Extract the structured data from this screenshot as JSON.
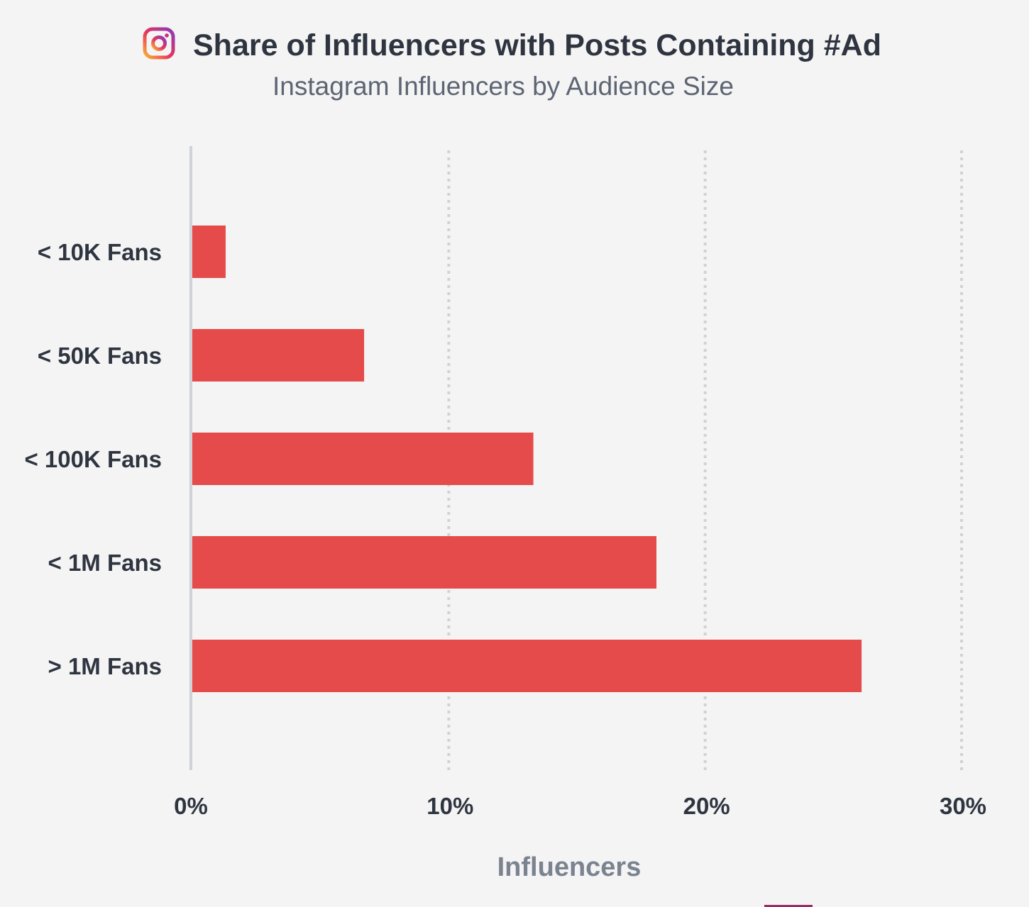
{
  "colors": {
    "bar": "#e54b4b",
    "text": "#2f3540",
    "subtitle": "#5d6573",
    "axis_label": "#7b8290",
    "grid": "#d2d2d2",
    "axis": "#cfd2d6"
  },
  "logo": {
    "icon": "instagram-icon"
  },
  "chart_data": {
    "type": "bar",
    "orientation": "horizontal",
    "title": "Share of Influencers with Posts Containing #Ad",
    "subtitle": "Instagram Influencers by Audience Size",
    "xlabel": "Influencers",
    "ylabel": "",
    "categories": [
      "< 10K Fans",
      "< 50K Fans",
      "< 100K Fans",
      "< 1M Fans",
      "> 1M Fans"
    ],
    "values": [
      1.3,
      6.7,
      13.3,
      18.1,
      26.1
    ],
    "unit": "%",
    "xlim": [
      0,
      30
    ],
    "xticks": [
      0,
      10,
      20,
      30
    ],
    "xtick_labels": [
      "0%",
      "10%",
      "20%",
      "30%"
    ],
    "grid": true,
    "legend": "none"
  }
}
